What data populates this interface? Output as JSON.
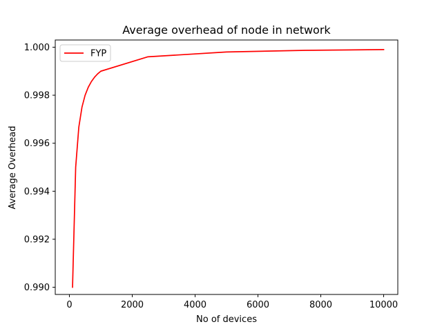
{
  "chart_data": {
    "type": "line",
    "title": "Average overhead of node in network",
    "xlabel": "No of devices",
    "ylabel": "Average Overhead",
    "xlim": [
      -450,
      10450
    ],
    "ylim": [
      0.9897,
      1.0003
    ],
    "xticks": [
      0,
      2000,
      4000,
      6000,
      8000,
      10000
    ],
    "xtick_labels": [
      "0",
      "2000",
      "4000",
      "6000",
      "8000",
      "10000"
    ],
    "yticks": [
      0.99,
      0.992,
      0.994,
      0.996,
      0.998,
      1.0
    ],
    "ytick_labels": [
      "0.990",
      "0.992",
      "0.994",
      "0.996",
      "0.998",
      "1.000"
    ],
    "grid": false,
    "legend": {
      "position": "top-left"
    },
    "series": [
      {
        "name": "FYP",
        "color": "#ff0000",
        "x": [
          100,
          200,
          300,
          400,
          500,
          600,
          700,
          800,
          900,
          1000,
          2500,
          5000,
          7500,
          10000
        ],
        "y": [
          0.99,
          0.995,
          0.99667,
          0.9975,
          0.998,
          0.99833,
          0.99857,
          0.99875,
          0.99889,
          0.999,
          0.9996,
          0.9998,
          0.99987,
          0.9999
        ]
      }
    ]
  }
}
